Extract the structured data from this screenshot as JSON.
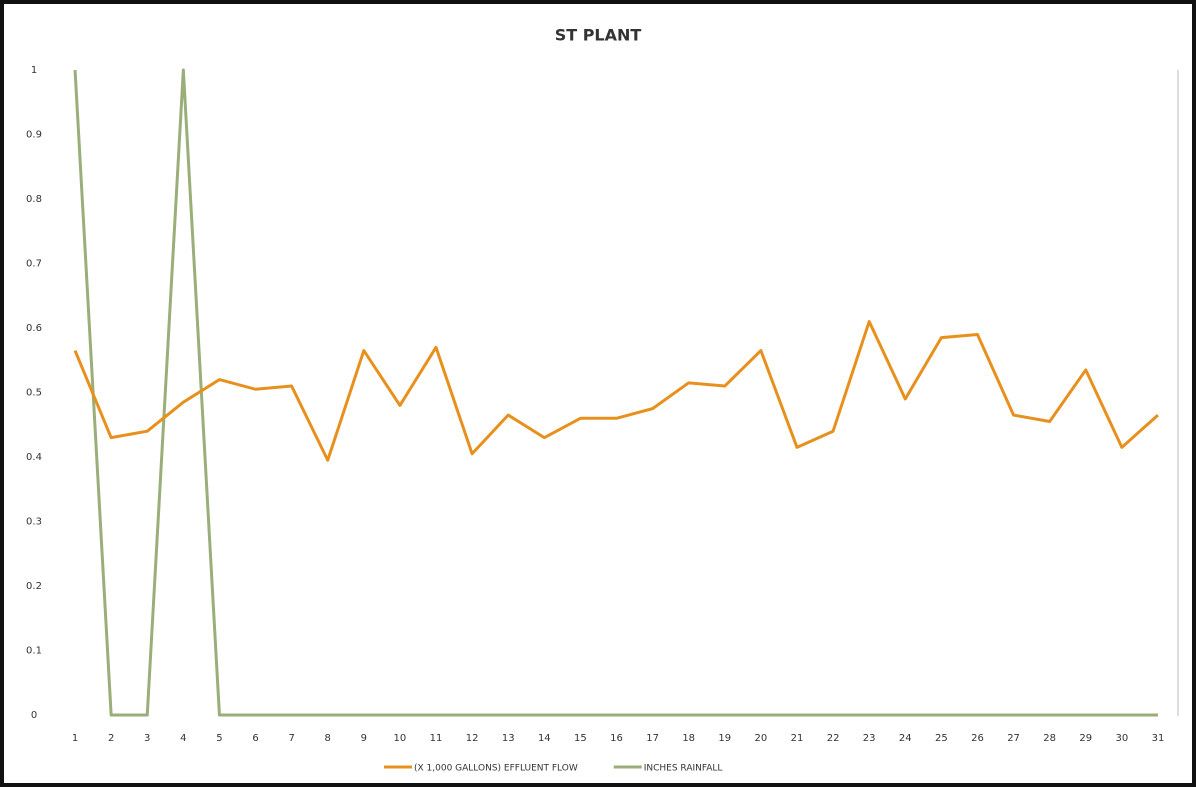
{
  "chart_data": {
    "type": "line",
    "title": "ST PLANT",
    "categories": [
      "1",
      "2",
      "3",
      "4",
      "5",
      "6",
      "7",
      "8",
      "9",
      "10",
      "11",
      "12",
      "13",
      "14",
      "15",
      "16",
      "17",
      "18",
      "19",
      "20",
      "21",
      "22",
      "23",
      "24",
      "25",
      "26",
      "27",
      "28",
      "29",
      "30",
      "31"
    ],
    "series": [
      {
        "name": "(X 1,000 GALLONS) EFFLUENT FLOW",
        "color": "#e8901e",
        "values": [
          0.565,
          0.43,
          0.44,
          0.485,
          0.52,
          0.505,
          0.51,
          0.395,
          0.565,
          0.48,
          0.57,
          0.405,
          0.465,
          0.43,
          0.46,
          0.46,
          0.475,
          0.515,
          0.51,
          0.565,
          0.415,
          0.44,
          0.61,
          0.49,
          0.585,
          0.59,
          0.465,
          0.455,
          0.535,
          0.415,
          0.465
        ]
      },
      {
        "name": "INCHES RAINFALL",
        "color": "#9aae7a",
        "values": [
          1,
          0,
          0,
          1,
          0,
          0,
          0,
          0,
          0,
          0,
          0,
          0,
          0,
          0,
          0,
          0,
          0,
          0,
          0,
          0,
          0,
          0,
          0,
          0,
          0,
          0,
          0,
          0,
          0,
          0,
          0
        ]
      }
    ],
    "ylim": [
      0,
      1
    ],
    "yticks": [
      0,
      0.1,
      0.2,
      0.3,
      0.4,
      0.5,
      0.6,
      0.7,
      0.8,
      0.9,
      1
    ],
    "grid": false
  }
}
